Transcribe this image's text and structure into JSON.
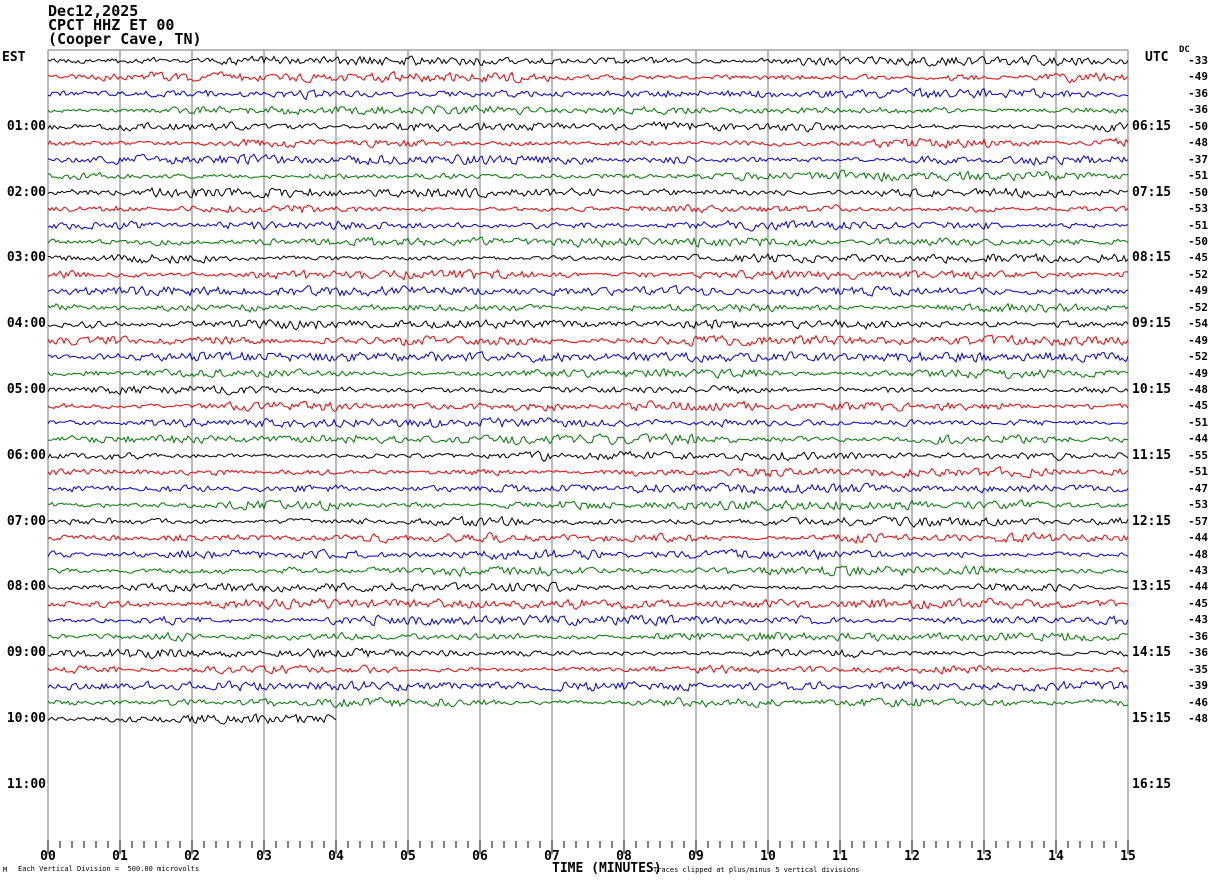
{
  "header": {
    "date": "Dec12,2025",
    "station": "CPCT HHZ ET 00",
    "location": "(Cooper Cave, TN)"
  },
  "axes": {
    "left_label": "EST",
    "right_label": "UTC",
    "dc_label": "DC",
    "x_label": "TIME (MINUTES)"
  },
  "footer": {
    "scale_note": "Each Vertical Division =  500.00 microvolts",
    "clip_note": "Traces clipped at plus/minus 5 vertical divisions",
    "corner_mark": "M"
  },
  "chart_data": {
    "type": "line",
    "subtype": "helicorder_seismogram",
    "title": "CPCT HHZ ET 00 (Cooper Cave, TN) Dec12,2025",
    "xlabel": "TIME (MINUTES)",
    "x_range_minutes": [
      0,
      15
    ],
    "x_major_ticks": [
      "00",
      "01",
      "02",
      "03",
      "04",
      "05",
      "06",
      "07",
      "08",
      "09",
      "10",
      "11",
      "12",
      "13",
      "14",
      "15"
    ],
    "x_minor_ticks_per_minute": 6,
    "minutes_per_trace": 15,
    "traces_per_hour": 4,
    "rows_total_slots": 48,
    "num_traces_drawn": 41,
    "last_trace_partial_minutes": 4,
    "trace_color_cycle": [
      "#000000",
      "#ee0000",
      "#0000cc",
      "#007700"
    ],
    "grid_color": "#777777",
    "microvolts_per_division": 500.0,
    "amplitude_clip_divisions": 5,
    "left_time_labels_est": [
      {
        "row": 4,
        "text": "01:00"
      },
      {
        "row": 8,
        "text": "02:00"
      },
      {
        "row": 12,
        "text": "03:00"
      },
      {
        "row": 16,
        "text": "04:00"
      },
      {
        "row": 20,
        "text": "05:00"
      },
      {
        "row": 24,
        "text": "06:00"
      },
      {
        "row": 28,
        "text": "07:00"
      },
      {
        "row": 32,
        "text": "08:00"
      },
      {
        "row": 36,
        "text": "09:00"
      },
      {
        "row": 40,
        "text": "10:00"
      },
      {
        "row": 44,
        "text": "11:00"
      }
    ],
    "right_time_labels_utc": [
      {
        "row": 4,
        "text": "06:15"
      },
      {
        "row": 8,
        "text": "07:15"
      },
      {
        "row": 12,
        "text": "08:15"
      },
      {
        "row": 16,
        "text": "09:15"
      },
      {
        "row": 20,
        "text": "10:15"
      },
      {
        "row": 24,
        "text": "11:15"
      },
      {
        "row": 28,
        "text": "12:15"
      },
      {
        "row": 32,
        "text": "13:15"
      },
      {
        "row": 36,
        "text": "14:15"
      },
      {
        "row": 40,
        "text": "15:15"
      },
      {
        "row": 44,
        "text": "16:15"
      }
    ],
    "dc_offsets_by_trace": [
      -33,
      -49,
      -36,
      -36,
      -50,
      -48,
      -37,
      -51,
      -50,
      -53,
      -51,
      -50,
      -45,
      -52,
      -49,
      -52,
      -54,
      -49,
      -52,
      -49,
      -48,
      -45,
      -51,
      -44,
      -55,
      -51,
      -47,
      -53,
      -57,
      -44,
      -48,
      -43,
      -44,
      -45,
      -43,
      -36,
      -36,
      -35,
      -39,
      -46,
      -48
    ]
  }
}
